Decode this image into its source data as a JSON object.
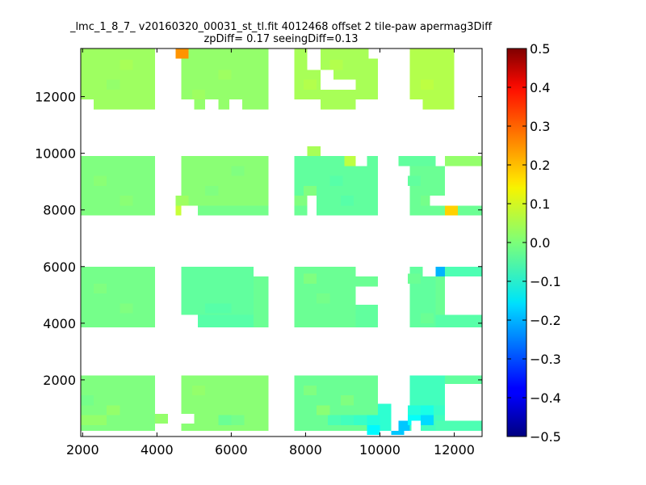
{
  "chart_data": {
    "type": "heatmap",
    "title_lines": [
      "_lmc_1_8_7_ v20160320_00031_st_tl.fit 4012468 offset 2 tile-paw apermag3Diff",
      "zpDiff= 0.17 seeingDiff=0.13"
    ],
    "xlabel": "",
    "ylabel": "",
    "xlim": [
      1950,
      12750
    ],
    "ylim": [
      0,
      13700
    ],
    "x_ticks": [
      2000,
      4000,
      6000,
      8000,
      10000,
      12000
    ],
    "y_ticks": [
      2000,
      4000,
      6000,
      8000,
      10000,
      12000
    ],
    "grid": false,
    "colormap": "jet",
    "colorbar": {
      "min": -0.5,
      "max": 0.5,
      "ticks": [
        "0.5",
        "0.4",
        "0.3",
        "0.2",
        "0.1",
        "0.0",
        "−0.1",
        "−0.2",
        "−0.3",
        "−0.4",
        "−0.5"
      ],
      "tick_values": [
        0.5,
        0.4,
        0.3,
        0.2,
        0.1,
        0.0,
        -0.1,
        -0.2,
        -0.3,
        -0.4,
        -0.5
      ]
    },
    "cell_size": 350,
    "regions": [
      {
        "x0": 1950,
        "x1": 3950,
        "y0": 200,
        "y1": 2150,
        "value": 0.0
      },
      {
        "x0": 3950,
        "x1": 4300,
        "y0": 450,
        "y1": 800,
        "value": 0.02
      },
      {
        "x0": 4650,
        "x1": 7000,
        "y0": 200,
        "y1": 2150,
        "value": 0.01
      },
      {
        "x0": 7700,
        "x1": 9950,
        "y0": 200,
        "y1": 2150,
        "value": -0.02
      },
      {
        "x0": 9950,
        "x1": 10300,
        "y0": 200,
        "y1": 1150,
        "value": -0.08
      },
      {
        "x0": 10500,
        "x1": 10850,
        "y0": 200,
        "y1": 550,
        "value": -0.18
      },
      {
        "x0": 10800,
        "x1": 11750,
        "y0": 200,
        "y1": 2150,
        "value": -0.06
      },
      {
        "x0": 11500,
        "x1": 12750,
        "y0": 200,
        "y1": 550,
        "value": -0.05
      },
      {
        "x0": 11750,
        "x1": 12750,
        "y0": 1850,
        "y1": 2150,
        "value": -0.03
      },
      {
        "x0": 1950,
        "x1": 3950,
        "y0": 3850,
        "y1": 6000,
        "value": -0.01
      },
      {
        "x0": 4650,
        "x1": 6600,
        "y0": 4300,
        "y1": 6000,
        "value": -0.03
      },
      {
        "x0": 6600,
        "x1": 7000,
        "y0": 3850,
        "y1": 5650,
        "value": -0.02
      },
      {
        "x0": 5100,
        "x1": 6600,
        "y0": 3850,
        "y1": 4300,
        "value": -0.04
      },
      {
        "x0": 7700,
        "x1": 9350,
        "y0": 3850,
        "y1": 6000,
        "value": -0.02
      },
      {
        "x0": 9350,
        "x1": 9950,
        "y0": 3850,
        "y1": 4650,
        "value": -0.03
      },
      {
        "x0": 9350,
        "x1": 9950,
        "y0": 5300,
        "y1": 5650,
        "value": -0.02
      },
      {
        "x0": 10800,
        "x1": 11500,
        "y0": 3850,
        "y1": 6000,
        "value": -0.03
      },
      {
        "x0": 11500,
        "x1": 11750,
        "y0": 4300,
        "y1": 5650,
        "value": -0.02
      },
      {
        "x0": 11500,
        "x1": 12750,
        "y0": 3850,
        "y1": 4300,
        "value": -0.04
      },
      {
        "x0": 11750,
        "x1": 12750,
        "y0": 5650,
        "y1": 6000,
        "value": -0.05
      },
      {
        "x0": 1950,
        "x1": 3950,
        "y0": 7800,
        "y1": 9900,
        "value": 0.0
      },
      {
        "x0": 4650,
        "x1": 7000,
        "y0": 8150,
        "y1": 9900,
        "value": 0.01
      },
      {
        "x0": 5100,
        "x1": 7000,
        "y0": 7800,
        "y1": 8150,
        "value": -0.01
      },
      {
        "x0": 7700,
        "x1": 9950,
        "y0": 8150,
        "y1": 9900,
        "value": -0.03
      },
      {
        "x0": 8300,
        "x1": 9950,
        "y0": 7800,
        "y1": 8150,
        "value": -0.03
      },
      {
        "x0": 7700,
        "x1": 8050,
        "y0": 7800,
        "y1": 8150,
        "value": -0.02
      },
      {
        "x0": 10500,
        "x1": 11500,
        "y0": 9550,
        "y1": 9900,
        "value": -0.03
      },
      {
        "x0": 10800,
        "x1": 11750,
        "y0": 7800,
        "y1": 9550,
        "value": -0.02
      },
      {
        "x0": 11750,
        "x1": 12750,
        "y0": 7800,
        "y1": 8150,
        "value": -0.02
      },
      {
        "x0": 11750,
        "x1": 12750,
        "y0": 9550,
        "y1": 9900,
        "value": 0.02
      },
      {
        "x0": 1950,
        "x1": 3950,
        "y0": 11550,
        "y1": 13700,
        "value": 0.03
      },
      {
        "x0": 4650,
        "x1": 7000,
        "y0": 11550,
        "y1": 13350,
        "value": 0.02
      },
      {
        "x0": 4650,
        "x1": 7000,
        "y0": 13350,
        "y1": 13700,
        "value": 0.02
      },
      {
        "x0": 7700,
        "x1": 9950,
        "y0": 11550,
        "y1": 13700,
        "value": 0.04
      },
      {
        "x0": 10800,
        "x1": 12000,
        "y0": 11550,
        "y1": 13700,
        "value": 0.05
      }
    ],
    "holes": [
      {
        "x0": 1950,
        "x1": 2300,
        "y0": 11550,
        "y1": 11900
      },
      {
        "x0": 4650,
        "x1": 5000,
        "y0": 11550,
        "y1": 11900
      },
      {
        "x0": 5300,
        "x1": 5650,
        "y0": 11550,
        "y1": 11900
      },
      {
        "x0": 5950,
        "x1": 6300,
        "y0": 11550,
        "y1": 11900
      },
      {
        "x0": 7700,
        "x1": 8400,
        "y0": 11550,
        "y1": 11900
      },
      {
        "x0": 8050,
        "x1": 8400,
        "y0": 12950,
        "y1": 13700
      },
      {
        "x0": 8400,
        "x1": 8750,
        "y0": 12250,
        "y1": 12950
      },
      {
        "x0": 8750,
        "x1": 9350,
        "y0": 12250,
        "y1": 12600
      },
      {
        "x0": 9350,
        "x1": 9950,
        "y0": 11550,
        "y1": 11900
      },
      {
        "x0": 9700,
        "x1": 9950,
        "y0": 13350,
        "y1": 13700
      },
      {
        "x0": 10800,
        "x1": 11150,
        "y0": 11550,
        "y1": 11900
      },
      {
        "x0": 8050,
        "x1": 8300,
        "y0": 8150,
        "y1": 8500
      },
      {
        "x0": 9350,
        "x1": 9650,
        "y0": 9550,
        "y1": 9900
      },
      {
        "x0": 11750,
        "x1": 12750,
        "y0": 8150,
        "y1": 9550
      },
      {
        "x0": 11350,
        "x1": 11750,
        "y0": 8150,
        "y1": 8500
      },
      {
        "x0": 9350,
        "x1": 9950,
        "y0": 4650,
        "y1": 5300
      },
      {
        "x0": 9350,
        "x1": 9950,
        "y0": 5650,
        "y1": 6000
      },
      {
        "x0": 11750,
        "x1": 12750,
        "y0": 4300,
        "y1": 5650
      },
      {
        "x0": 11150,
        "x1": 11500,
        "y0": 5650,
        "y1": 6000
      },
      {
        "x0": 11750,
        "x1": 12750,
        "y0": 550,
        "y1": 1850
      },
      {
        "x0": 3950,
        "x1": 4300,
        "y0": 200,
        "y1": 450
      },
      {
        "x0": 4650,
        "x1": 5000,
        "y0": 450,
        "y1": 800
      },
      {
        "x0": 10300,
        "x1": 10500,
        "y0": 200,
        "y1": 550
      },
      {
        "x0": 10850,
        "x1": 11100,
        "y0": 200,
        "y1": 550
      },
      {
        "x0": 4650,
        "x1": 5100,
        "y0": 7800,
        "y1": 8150
      }
    ],
    "cells": [
      {
        "x": 4675,
        "y": 13525,
        "value": 0.23
      },
      {
        "x": 8225,
        "y": 10075,
        "value": 0.04
      },
      {
        "x": 9225,
        "y": 9725,
        "value": 0.06
      },
      {
        "x": 4675,
        "y": 7975,
        "value": 0.07
      },
      {
        "x": 4675,
        "y": 8325,
        "value": 0.03
      },
      {
        "x": 11925,
        "y": 7975,
        "value": 0.17
      },
      {
        "x": 11575,
        "y": 5825,
        "value": -0.2
      },
      {
        "x": 10475,
        "y": 225,
        "value": -0.18
      },
      {
        "x": 11275,
        "y": 575,
        "value": -0.16
      },
      {
        "x": 10925,
        "y": 575,
        "value": -0.12
      },
      {
        "x": 10925,
        "y": 925,
        "value": -0.09
      },
      {
        "x": 11275,
        "y": 925,
        "value": -0.1
      },
      {
        "x": 11625,
        "y": 925,
        "value": -0.07
      },
      {
        "x": 9825,
        "y": 225,
        "value": -0.13
      },
      {
        "x": 9825,
        "y": 575,
        "value": -0.09
      },
      {
        "x": 9475,
        "y": 575,
        "value": -0.07
      },
      {
        "x": 9125,
        "y": 575,
        "value": -0.06
      },
      {
        "x": 8775,
        "y": 575,
        "value": -0.05
      },
      {
        "x": 2125,
        "y": 1275,
        "value": -0.01
      },
      {
        "x": 2125,
        "y": 575,
        "value": 0.02
      },
      {
        "x": 2475,
        "y": 575,
        "value": 0.02
      },
      {
        "x": 2825,
        "y": 925,
        "value": 0.02
      },
      {
        "x": 5125,
        "y": 1625,
        "value": 0.02
      },
      {
        "x": 5475,
        "y": 1275,
        "value": 0.01
      },
      {
        "x": 5825,
        "y": 575,
        "value": -0.02
      },
      {
        "x": 6175,
        "y": 575,
        "value": -0.01
      },
      {
        "x": 8125,
        "y": 1625,
        "value": 0.0
      },
      {
        "x": 8475,
        "y": 925,
        "value": 0.01
      },
      {
        "x": 9125,
        "y": 1275,
        "value": 0.0
      },
      {
        "x": 5475,
        "y": 4525,
        "value": -0.04
      },
      {
        "x": 5825,
        "y": 4525,
        "value": -0.04
      },
      {
        "x": 6175,
        "y": 4875,
        "value": -0.03
      },
      {
        "x": 2475,
        "y": 5225,
        "value": 0.0
      },
      {
        "x": 3175,
        "y": 4525,
        "value": 0.0
      },
      {
        "x": 8125,
        "y": 5575,
        "value": 0.0
      },
      {
        "x": 8475,
        "y": 4875,
        "value": -0.01
      },
      {
        "x": 10925,
        "y": 5575,
        "value": -0.02
      },
      {
        "x": 11275,
        "y": 4175,
        "value": -0.02
      },
      {
        "x": 2475,
        "y": 9025,
        "value": 0.01
      },
      {
        "x": 3175,
        "y": 8325,
        "value": 0.01
      },
      {
        "x": 5475,
        "y": 8675,
        "value": 0.0
      },
      {
        "x": 6175,
        "y": 9375,
        "value": 0.0
      },
      {
        "x": 7875,
        "y": 8325,
        "value": 0.0
      },
      {
        "x": 8125,
        "y": 8675,
        "value": 0.0
      },
      {
        "x": 8825,
        "y": 9025,
        "value": -0.04
      },
      {
        "x": 9125,
        "y": 8325,
        "value": -0.04
      },
      {
        "x": 11275,
        "y": 8325,
        "value": -0.01
      },
      {
        "x": 10925,
        "y": 9025,
        "value": -0.03
      },
      {
        "x": 5125,
        "y": 12075,
        "value": 0.03
      },
      {
        "x": 5825,
        "y": 12775,
        "value": 0.03
      },
      {
        "x": 2825,
        "y": 12425,
        "value": 0.02
      },
      {
        "x": 3175,
        "y": 13125,
        "value": 0.04
      },
      {
        "x": 8125,
        "y": 12425,
        "value": 0.05
      },
      {
        "x": 8825,
        "y": 13125,
        "value": 0.05
      },
      {
        "x": 9475,
        "y": 13525,
        "value": 0.04
      },
      {
        "x": 11275,
        "y": 12425,
        "value": 0.06
      },
      {
        "x": 11625,
        "y": 13125,
        "value": 0.05
      },
      {
        "x": 2125,
        "y": 12775,
        "value": 0.03
      }
    ]
  }
}
